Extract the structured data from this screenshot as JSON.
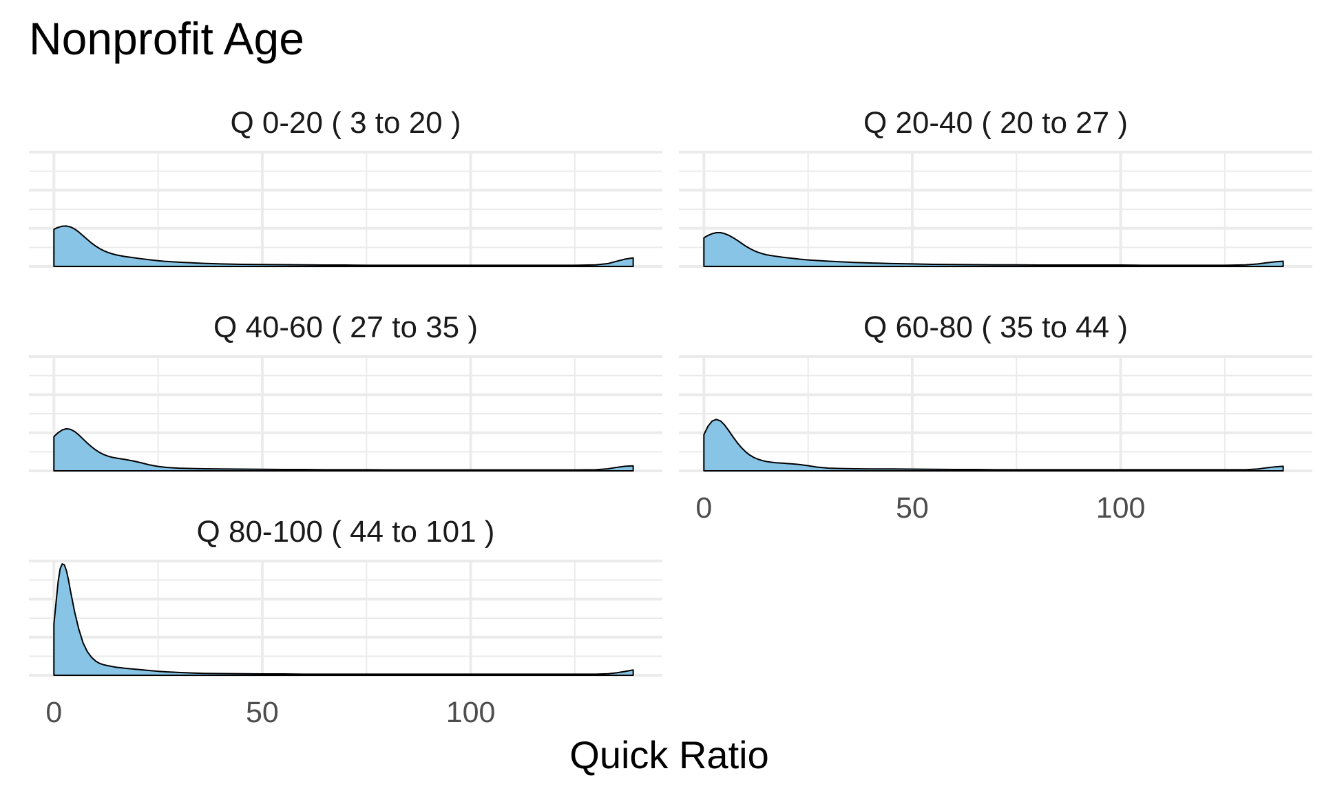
{
  "chart_data": {
    "type": "area",
    "title": "Nonprofit Age",
    "xlabel": "Quick Ratio",
    "ylabel": "",
    "xlim": [
      -6,
      146
    ],
    "x_ticks": [
      0,
      50,
      100
    ],
    "y_tick_labels": false,
    "grid": true,
    "fill_color": "#87c4e5",
    "line_color": "#000000",
    "panels": [
      {
        "label": "Q 0-20   ( 3 to 20 )",
        "x": [
          0,
          1,
          2,
          3,
          4,
          5,
          6,
          7,
          8,
          9,
          10,
          11,
          12,
          13,
          14,
          15,
          17,
          19,
          21,
          23,
          25,
          27,
          30,
          33,
          36,
          40,
          45,
          50,
          55,
          60,
          65,
          70,
          75,
          80,
          85,
          90,
          95,
          100,
          105,
          110,
          115,
          120,
          125,
          130,
          133,
          135,
          137,
          139
        ],
        "values": [
          0.195,
          0.205,
          0.211,
          0.212,
          0.207,
          0.196,
          0.18,
          0.161,
          0.142,
          0.123,
          0.107,
          0.093,
          0.082,
          0.073,
          0.066,
          0.06,
          0.052,
          0.046,
          0.04,
          0.035,
          0.03,
          0.026,
          0.022,
          0.019,
          0.016,
          0.013,
          0.011,
          0.01,
          0.009,
          0.008,
          0.007,
          0.007,
          0.006,
          0.006,
          0.006,
          0.006,
          0.006,
          0.006,
          0.006,
          0.006,
          0.006,
          0.006,
          0.006,
          0.008,
          0.015,
          0.027,
          0.038,
          0.045
        ]
      },
      {
        "label": "Q 20-40   ( 20 to 27 )",
        "x": [
          0,
          1,
          2,
          3,
          4,
          5,
          6,
          7,
          8,
          9,
          10,
          11,
          12,
          13,
          14,
          15,
          17,
          19,
          21,
          23,
          25,
          27,
          30,
          33,
          36,
          40,
          45,
          50,
          55,
          60,
          65,
          70,
          75,
          80,
          85,
          90,
          95,
          100,
          105,
          110,
          115,
          120,
          125,
          130,
          133,
          135,
          137,
          139
        ],
        "values": [
          0.15,
          0.163,
          0.172,
          0.177,
          0.177,
          0.172,
          0.163,
          0.151,
          0.137,
          0.122,
          0.107,
          0.094,
          0.083,
          0.074,
          0.067,
          0.061,
          0.054,
          0.048,
          0.043,
          0.038,
          0.034,
          0.031,
          0.027,
          0.024,
          0.021,
          0.018,
          0.015,
          0.013,
          0.011,
          0.01,
          0.009,
          0.008,
          0.008,
          0.007,
          0.007,
          0.007,
          0.007,
          0.007,
          0.006,
          0.006,
          0.006,
          0.006,
          0.006,
          0.008,
          0.013,
          0.019,
          0.024,
          0.027
        ]
      },
      {
        "label": "Q 40-60   ( 27 to 35 )",
        "x": [
          0,
          1,
          2,
          3,
          4,
          5,
          6,
          7,
          8,
          9,
          10,
          11,
          12,
          13,
          14,
          15,
          17,
          19,
          21,
          23,
          25,
          27,
          30,
          33,
          36,
          40,
          45,
          50,
          55,
          60,
          65,
          70,
          75,
          80,
          85,
          90,
          95,
          100,
          105,
          110,
          115,
          120,
          125,
          130,
          133,
          135,
          137,
          139
        ],
        "values": [
          0.18,
          0.2,
          0.215,
          0.221,
          0.218,
          0.206,
          0.188,
          0.167,
          0.146,
          0.127,
          0.11,
          0.096,
          0.085,
          0.077,
          0.071,
          0.067,
          0.06,
          0.052,
          0.042,
          0.031,
          0.023,
          0.018,
          0.014,
          0.012,
          0.011,
          0.01,
          0.009,
          0.008,
          0.007,
          0.007,
          0.006,
          0.006,
          0.006,
          0.005,
          0.005,
          0.005,
          0.005,
          0.005,
          0.005,
          0.005,
          0.005,
          0.005,
          0.005,
          0.006,
          0.011,
          0.018,
          0.024,
          0.026
        ]
      },
      {
        "label": "Q 60-80   ( 35 to 44 )",
        "x": [
          0,
          1,
          2,
          3,
          4,
          5,
          6,
          7,
          8,
          9,
          10,
          11,
          12,
          13,
          14,
          15,
          17,
          19,
          21,
          23,
          25,
          27,
          30,
          33,
          36,
          40,
          45,
          50,
          55,
          60,
          65,
          70,
          75,
          80,
          85,
          90,
          95,
          100,
          105,
          110,
          115,
          120,
          125,
          130,
          133,
          135,
          137,
          139
        ],
        "values": [
          0.19,
          0.235,
          0.262,
          0.27,
          0.262,
          0.24,
          0.21,
          0.178,
          0.148,
          0.122,
          0.1,
          0.083,
          0.07,
          0.061,
          0.054,
          0.049,
          0.043,
          0.04,
          0.037,
          0.033,
          0.027,
          0.02,
          0.014,
          0.012,
          0.011,
          0.01,
          0.01,
          0.009,
          0.008,
          0.007,
          0.007,
          0.006,
          0.006,
          0.006,
          0.006,
          0.006,
          0.006,
          0.006,
          0.006,
          0.006,
          0.006,
          0.006,
          0.006,
          0.006,
          0.01,
          0.016,
          0.021,
          0.024
        ]
      },
      {
        "label": "Q 80-100   ( 44 to 101 )",
        "x": [
          0,
          1,
          1.5,
          2,
          2.5,
          3,
          3.5,
          4,
          5,
          6,
          7,
          8,
          9,
          10,
          11,
          12,
          13,
          14,
          15,
          17,
          19,
          21,
          23,
          25,
          27,
          30,
          33,
          36,
          40,
          45,
          50,
          55,
          60,
          65,
          70,
          75,
          80,
          85,
          90,
          95,
          100,
          105,
          110,
          115,
          120,
          125,
          130,
          133,
          135,
          137,
          139
        ],
        "values": [
          0.27,
          0.49,
          0.56,
          0.585,
          0.58,
          0.55,
          0.5,
          0.44,
          0.33,
          0.24,
          0.17,
          0.125,
          0.095,
          0.075,
          0.062,
          0.055,
          0.05,
          0.046,
          0.042,
          0.037,
          0.033,
          0.029,
          0.025,
          0.021,
          0.018,
          0.015,
          0.012,
          0.01,
          0.009,
          0.008,
          0.007,
          0.007,
          0.006,
          0.006,
          0.006,
          0.006,
          0.006,
          0.006,
          0.006,
          0.006,
          0.006,
          0.006,
          0.006,
          0.006,
          0.006,
          0.006,
          0.006,
          0.008,
          0.013,
          0.02,
          0.028
        ]
      }
    ]
  }
}
